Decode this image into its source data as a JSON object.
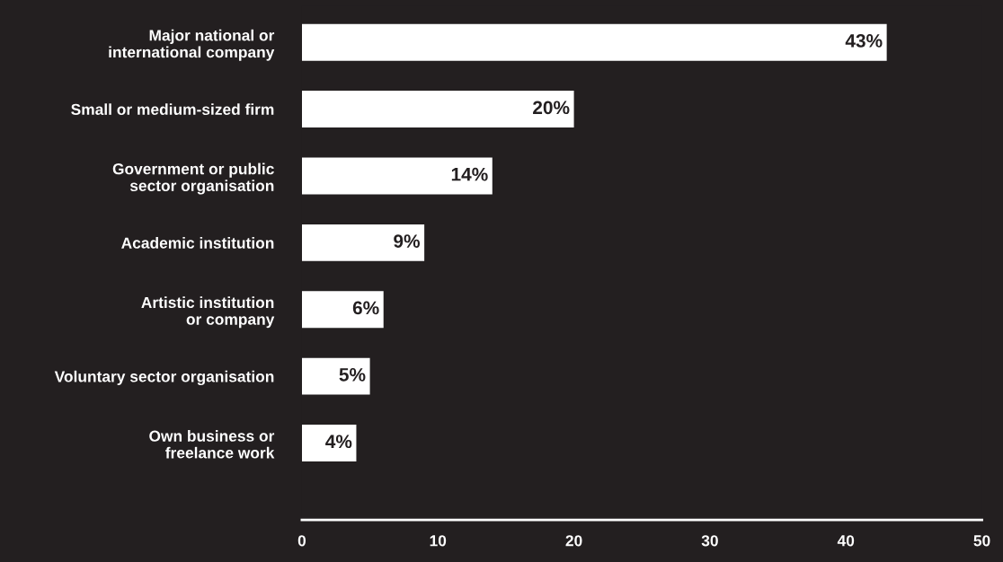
{
  "chart_data": {
    "type": "bar",
    "orientation": "horizontal",
    "categories": [
      "Major national or\ninternational company",
      "Small or medium-sized firm",
      "Government or public\nsector organisation",
      "Academic institution",
      "Artistic institution\nor company",
      "Voluntary sector organisation",
      "Own business or\nfreelance work"
    ],
    "series": [
      {
        "color": "#ffffff",
        "values": [
          43,
          20,
          14,
          9,
          6,
          5,
          4
        ]
      }
    ],
    "value_labels": [
      "43%",
      "20%",
      "14%",
      "9%",
      "6%",
      "5%",
      "4%"
    ],
    "xlim": [
      0,
      50
    ],
    "xticks": [
      0,
      10,
      20,
      30,
      40,
      50
    ],
    "grid": false,
    "legend": false
  }
}
